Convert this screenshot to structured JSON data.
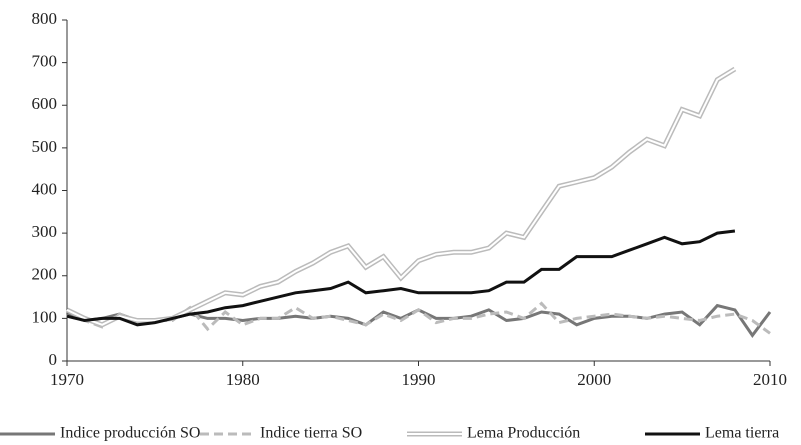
{
  "chart_data": {
    "type": "line",
    "x": [
      1970,
      1971,
      1972,
      1973,
      1974,
      1975,
      1976,
      1977,
      1978,
      1979,
      1980,
      1981,
      1982,
      1983,
      1984,
      1985,
      1986,
      1987,
      1988,
      1989,
      1990,
      1991,
      1992,
      1993,
      1994,
      1995,
      1996,
      1997,
      1998,
      1999,
      2000,
      2001,
      2002,
      2003,
      2004,
      2005,
      2006,
      2007,
      2008,
      2009,
      2010
    ],
    "xlim": [
      1970,
      2010
    ],
    "xticks": [
      1970,
      1980,
      1990,
      2000,
      2010
    ],
    "ylim": [
      0,
      800
    ],
    "yticks": [
      0,
      100,
      200,
      300,
      400,
      500,
      600,
      700,
      800
    ],
    "series": [
      {
        "name": "Indice producción SO",
        "color": "#777777",
        "style": "solid",
        "values": [
          110,
          95,
          100,
          110,
          95,
          95,
          100,
          110,
          100,
          100,
          95,
          100,
          100,
          105,
          100,
          105,
          100,
          85,
          115,
          100,
          120,
          100,
          100,
          105,
          120,
          95,
          100,
          115,
          110,
          85,
          100,
          105,
          105,
          100,
          110,
          115,
          85,
          130,
          120,
          60,
          115
        ]
      },
      {
        "name": "Indice tierra SO",
        "color": "#bbbbbb",
        "style": "dashed",
        "values": [
          105,
          95,
          80,
          110,
          95,
          95,
          95,
          125,
          75,
          115,
          85,
          100,
          100,
          125,
          100,
          105,
          95,
          85,
          110,
          95,
          120,
          90,
          100,
          100,
          110,
          115,
          100,
          135,
          90,
          100,
          105,
          110,
          105,
          100,
          105,
          100,
          95,
          105,
          110,
          95,
          65
        ]
      },
      {
        "name": "Lema Producción",
        "color": "#bbbbbb",
        "style": "double",
        "values": [
          120,
          100,
          85,
          105,
          95,
          95,
          100,
          120,
          140,
          160,
          155,
          175,
          185,
          210,
          230,
          255,
          270,
          220,
          245,
          195,
          235,
          250,
          255,
          255,
          265,
          300,
          290,
          350,
          410,
          420,
          430,
          455,
          490,
          520,
          505,
          590,
          575,
          660,
          685,
          null,
          null
        ]
      },
      {
        "name": "Lema tierra",
        "color": "#111111",
        "style": "solid",
        "values": [
          105,
          95,
          100,
          100,
          85,
          90,
          100,
          110,
          115,
          125,
          130,
          140,
          150,
          160,
          165,
          170,
          185,
          160,
          165,
          170,
          160,
          160,
          160,
          160,
          165,
          185,
          185,
          215,
          215,
          245,
          245,
          245,
          260,
          275,
          290,
          275,
          280,
          300,
          305,
          null,
          null
        ]
      }
    ]
  }
}
